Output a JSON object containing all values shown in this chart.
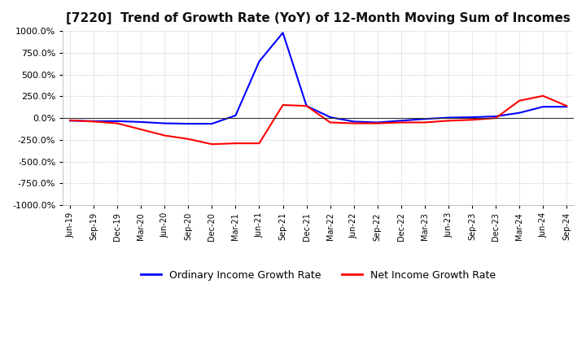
{
  "title": "[7220]  Trend of Growth Rate (YoY) of 12-Month Moving Sum of Incomes",
  "title_fontsize": 11,
  "ylim": [
    -1000,
    1000
  ],
  "yticks": [
    -1000,
    -750,
    -500,
    -250,
    0,
    250,
    500,
    750,
    1000
  ],
  "yticklabels": [
    "-1000.0%",
    "-750.0%",
    "-500.0%",
    "-250.0%",
    "0.0%",
    "250.0%",
    "500.0%",
    "750.0%",
    "1000.0%"
  ],
  "ordinary_color": "#0000FF",
  "net_color": "#FF0000",
  "background_color": "#FFFFFF",
  "grid_color": "#AAAAAA",
  "legend_labels": [
    "Ordinary Income Growth Rate",
    "Net Income Growth Rate"
  ],
  "x_labels": [
    "Jun-19",
    "Sep-19",
    "Dec-19",
    "Mar-20",
    "Jun-20",
    "Sep-20",
    "Dec-20",
    "Mar-21",
    "Jun-21",
    "Sep-21",
    "Dec-21",
    "Mar-22",
    "Jun-22",
    "Sep-22",
    "Dec-22",
    "Mar-23",
    "Jun-23",
    "Sep-23",
    "Dec-23",
    "Mar-24",
    "Jun-24",
    "Sep-24"
  ],
  "ordinary_values": [
    -30,
    -35,
    -35,
    -45,
    -60,
    -65,
    -65,
    30,
    650,
    980,
    140,
    10,
    -40,
    -50,
    -30,
    -10,
    5,
    10,
    20,
    60,
    130,
    130
  ],
  "net_values": [
    -25,
    -40,
    -60,
    -130,
    -200,
    -240,
    -300,
    -290,
    -290,
    150,
    140,
    -50,
    -60,
    -60,
    -50,
    -50,
    -30,
    -20,
    0,
    200,
    255,
    140
  ]
}
